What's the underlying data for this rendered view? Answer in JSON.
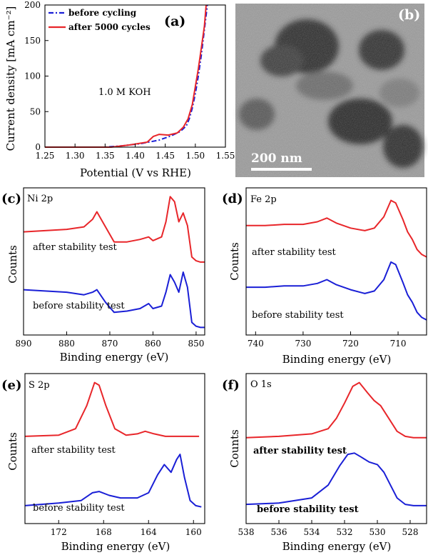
{
  "colors": {
    "red": "#e8262a",
    "blue": "#1a1fd6",
    "black": "#000000"
  },
  "chart_data": [
    {
      "panel": "(a)",
      "type": "line",
      "xlabel": "Potential (V vs RHE)",
      "ylabel": "Current density [mA cm⁻²]",
      "xlim": [
        1.25,
        1.55
      ],
      "ylim": [
        0,
        200
      ],
      "xticks": [
        "1.25",
        "1.30",
        "1.35",
        "1.40",
        "1.45",
        "1.50",
        "1.55"
      ],
      "yticks": [
        "0",
        "50",
        "100",
        "150",
        "200"
      ],
      "annotation": "1.0 M KOH",
      "legend_position": "top-left",
      "series": [
        {
          "name": "before cycling",
          "color": "blue",
          "dash": "dashdot",
          "x": [
            1.25,
            1.35,
            1.38,
            1.41,
            1.44,
            1.46,
            1.475,
            1.485,
            1.49,
            1.495,
            1.5,
            1.505,
            1.51,
            1.515,
            1.52
          ],
          "y": [
            0,
            0,
            2,
            5,
            10,
            16,
            22,
            30,
            40,
            55,
            75,
            100,
            130,
            165,
            200
          ]
        },
        {
          "name": "after 5000 cycles",
          "color": "red",
          "dash": "solid",
          "x": [
            1.25,
            1.36,
            1.39,
            1.42,
            1.43,
            1.44,
            1.455,
            1.47,
            1.48,
            1.488,
            1.495,
            1.5,
            1.505,
            1.51,
            1.515,
            1.518
          ],
          "y": [
            0,
            0,
            3,
            7,
            15,
            18,
            17,
            20,
            28,
            40,
            60,
            85,
            110,
            140,
            170,
            200
          ]
        }
      ]
    },
    {
      "panel": "(c)",
      "type": "line",
      "element": "Ni 2p",
      "xlabel": "Binding energy (eV)",
      "ylabel": "Counts",
      "xlim": [
        890,
        848
      ],
      "xticks": [
        "890",
        "880",
        "870",
        "860",
        "850"
      ],
      "series": [
        {
          "name": "after stability test",
          "color": "red",
          "x": [
            890,
            885,
            880,
            876,
            874,
            873,
            871,
            869,
            866,
            863,
            861,
            860,
            858,
            857,
            856,
            855,
            854,
            853,
            852,
            851,
            850,
            849,
            848
          ],
          "y": [
            0.7,
            0.71,
            0.72,
            0.74,
            0.8,
            0.86,
            0.74,
            0.62,
            0.62,
            0.64,
            0.66,
            0.63,
            0.66,
            0.78,
            0.98,
            0.94,
            0.78,
            0.85,
            0.75,
            0.5,
            0.47,
            0.46,
            0.46
          ]
        },
        {
          "name": "before stability test",
          "color": "blue",
          "x": [
            890,
            885,
            880,
            876,
            874,
            873,
            871,
            869,
            866,
            863,
            861,
            860,
            858,
            857,
            856,
            855,
            854,
            853,
            852,
            851,
            850,
            849,
            848
          ],
          "y": [
            0.24,
            0.23,
            0.22,
            0.2,
            0.22,
            0.24,
            0.14,
            0.06,
            0.07,
            0.09,
            0.13,
            0.09,
            0.11,
            0.22,
            0.36,
            0.3,
            0.22,
            0.38,
            0.26,
            -0.02,
            -0.05,
            -0.06,
            -0.06
          ]
        }
      ]
    },
    {
      "panel": "(d)",
      "type": "line",
      "element": "Fe 2p",
      "xlabel": "Binding energy (eV)",
      "ylabel": "Counts",
      "xlim": [
        742,
        704
      ],
      "xticks": [
        "740",
        "730",
        "720",
        "710"
      ],
      "series": [
        {
          "name": "after stability test",
          "color": "red",
          "x": [
            742,
            738,
            734,
            730,
            727,
            725,
            723,
            720,
            717,
            715,
            713,
            711.5,
            710.5,
            709,
            708,
            707,
            706,
            705,
            704
          ],
          "y": [
            0.75,
            0.75,
            0.76,
            0.76,
            0.78,
            0.81,
            0.77,
            0.73,
            0.71,
            0.73,
            0.82,
            0.95,
            0.93,
            0.8,
            0.7,
            0.64,
            0.56,
            0.52,
            0.5
          ]
        },
        {
          "name": "before stability test",
          "color": "blue",
          "x": [
            742,
            738,
            734,
            730,
            727,
            725,
            723,
            720,
            717,
            715,
            713,
            711.5,
            710.5,
            709,
            708,
            707,
            706,
            705,
            704
          ],
          "y": [
            0.26,
            0.26,
            0.27,
            0.27,
            0.29,
            0.32,
            0.28,
            0.24,
            0.21,
            0.23,
            0.32,
            0.46,
            0.44,
            0.3,
            0.2,
            0.14,
            0.06,
            0.02,
            0.0
          ]
        }
      ]
    },
    {
      "panel": "(e)",
      "type": "line",
      "element": "S 2p",
      "xlabel": "Binding energy (eV)",
      "ylabel": "Counts",
      "xlim": [
        175,
        159
      ],
      "xticks": [
        "172",
        "168",
        "164",
        "160"
      ],
      "series": [
        {
          "name": "after stability test",
          "color": "red",
          "x": [
            175,
            172,
            170.5,
            169.5,
            168.8,
            168.4,
            167.8,
            167,
            166,
            165,
            164.3,
            163.5,
            162.5,
            161.5,
            160.5,
            159.5
          ],
          "y": [
            0.56,
            0.57,
            0.62,
            0.8,
            0.98,
            0.96,
            0.8,
            0.62,
            0.57,
            0.58,
            0.6,
            0.58,
            0.56,
            0.56,
            0.56,
            0.56
          ]
        },
        {
          "name": "before stability test",
          "color": "blue",
          "x": [
            175,
            172,
            170,
            169,
            168.4,
            167.5,
            166.5,
            165,
            164,
            163.2,
            162.6,
            162,
            161.5,
            161.2,
            160.8,
            160.3,
            159.8,
            159.3
          ],
          "y": [
            0.02,
            0.04,
            0.06,
            0.12,
            0.13,
            0.1,
            0.08,
            0.08,
            0.12,
            0.26,
            0.34,
            0.28,
            0.38,
            0.42,
            0.24,
            0.06,
            0.02,
            0.01
          ]
        }
      ]
    },
    {
      "panel": "(f)",
      "type": "line",
      "element": "O 1s",
      "xlabel": "Binding energy (eV)",
      "ylabel": "Counts",
      "xlim": [
        538,
        527
      ],
      "xticks": [
        "538",
        "536",
        "534",
        "532",
        "530",
        "528"
      ],
      "series": [
        {
          "name": "after stability test",
          "color": "red",
          "x": [
            538,
            536,
            534,
            533,
            532.5,
            532,
            531.5,
            531.1,
            530.6,
            530.2,
            529.8,
            529.3,
            528.8,
            528.3,
            527.8,
            527
          ],
          "y": [
            0.55,
            0.56,
            0.58,
            0.62,
            0.7,
            0.82,
            0.95,
            0.98,
            0.9,
            0.84,
            0.8,
            0.7,
            0.6,
            0.56,
            0.55,
            0.55
          ]
        },
        {
          "name": "before stability test",
          "color": "blue",
          "x": [
            538,
            536,
            534,
            533,
            532.3,
            531.8,
            531.4,
            531,
            530.5,
            530,
            529.6,
            529.2,
            528.8,
            528.3,
            527.8,
            527
          ],
          "y": [
            0.03,
            0.04,
            0.08,
            0.18,
            0.33,
            0.42,
            0.43,
            0.4,
            0.36,
            0.34,
            0.28,
            0.18,
            0.08,
            0.03,
            0.02,
            0.02
          ]
        }
      ]
    }
  ],
  "tem_image": {
    "panel": "(b)",
    "scale_bar": "200 nm"
  }
}
